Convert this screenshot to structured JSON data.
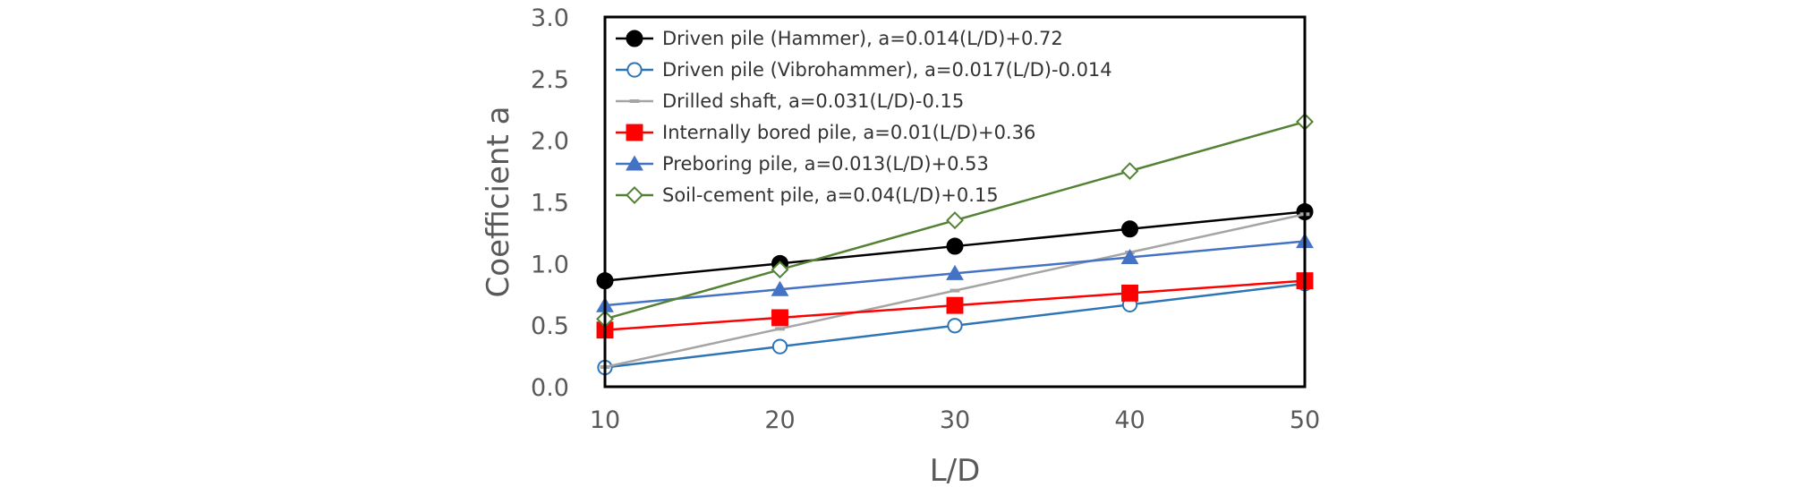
{
  "chart_data": {
    "type": "line",
    "title": "",
    "xlabel": "L/D",
    "ylabel": "Coefficient a",
    "x": [
      10,
      20,
      30,
      40,
      50
    ],
    "xlim": [
      10,
      50
    ],
    "ylim": [
      0,
      3.0
    ],
    "xticks": [
      10,
      20,
      30,
      40,
      50
    ],
    "yticks": [
      0.0,
      0.5,
      1.0,
      1.5,
      2.0,
      2.5,
      3.0
    ],
    "ytick_labels": [
      "0.0",
      "0.5",
      "1.0",
      "1.5",
      "2.0",
      "2.5",
      "3.0"
    ],
    "xtick_labels": [
      "10",
      "20",
      "30",
      "40",
      "50"
    ],
    "grid": false,
    "legend_position": "top-left",
    "series": [
      {
        "name": "Driven pile (Hammer), a=0.014(L/D)+0.72",
        "values": [
          0.86,
          1.0,
          1.14,
          1.28,
          1.42
        ],
        "color": "#000000",
        "marker": "circle-filled"
      },
      {
        "name": "Driven pile (Vibrohammer), a=0.017(L/D)-0.014",
        "values": [
          0.156,
          0.326,
          0.496,
          0.666,
          0.836
        ],
        "color": "#2E75B6",
        "marker": "circle-open"
      },
      {
        "name": "Drilled shaft, a=0.031(L/D)-0.15",
        "values": [
          0.16,
          0.47,
          0.78,
          1.09,
          1.4
        ],
        "color": "#A5A5A5",
        "marker": "dash"
      },
      {
        "name": "Internally bored pile, a=0.01(L/D)+0.36",
        "values": [
          0.46,
          0.56,
          0.66,
          0.76,
          0.86
        ],
        "color": "#FF0000",
        "marker": "square-filled"
      },
      {
        "name": "Preboring pile, a=0.013(L/D)+0.53",
        "values": [
          0.66,
          0.79,
          0.92,
          1.05,
          1.18
        ],
        "color": "#4472C4",
        "marker": "triangle-filled"
      },
      {
        "name": "Soil-cement pile, a=0.04(L/D)+0.15",
        "values": [
          0.55,
          0.95,
          1.35,
          1.75,
          2.15
        ],
        "color": "#548235",
        "marker": "diamond-open"
      }
    ]
  }
}
